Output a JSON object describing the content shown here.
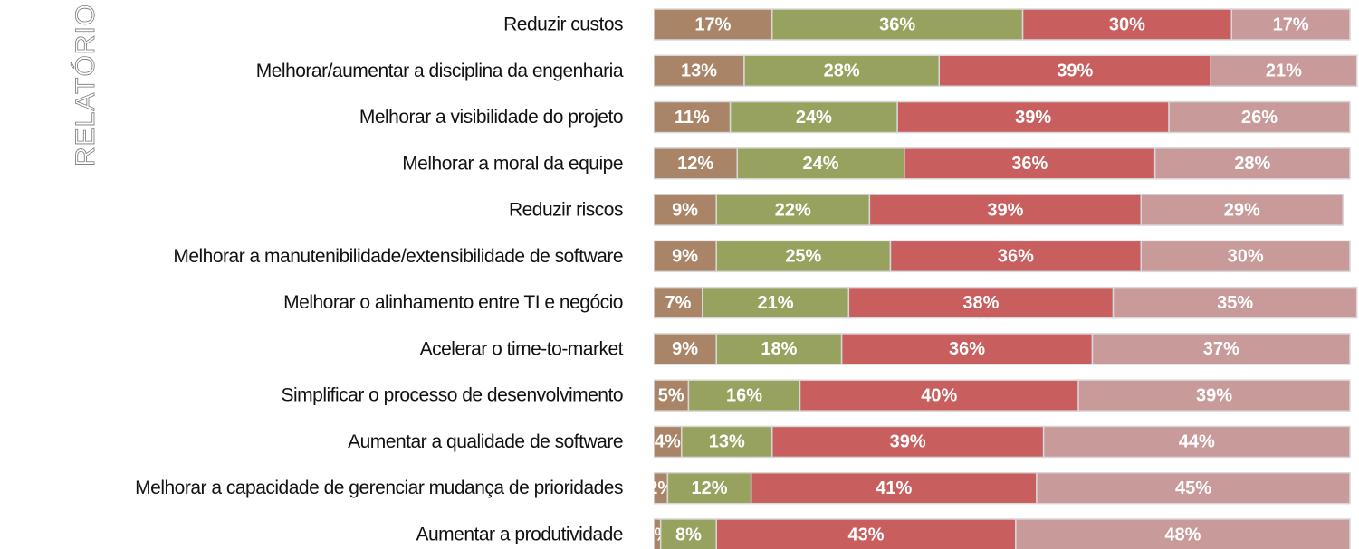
{
  "side_label": "RELATÓRIO",
  "chart_data": {
    "type": "stacked-barh",
    "categories": [
      "Reduzir custos",
      "Melhorar/aumentar a disciplina da engenharia",
      "Melhorar a visibilidade do projeto",
      "Melhorar a moral da equipe",
      "Reduzir riscos",
      "Melhorar a manutenibilidade/extensibilidade de software",
      "Melhorar o alinhamento entre TI e negócio",
      "Acelerar o time-to-market",
      "Simplificar o processo de desenvolvimento",
      "Aumentar a qualidade de software",
      "Melhorar a capacidade de gerenciar mudança de prioridades",
      "Aumentar a produtividade"
    ],
    "series": [
      {
        "color": "#a98466",
        "values": [
          17,
          13,
          11,
          12,
          9,
          9,
          7,
          9,
          5,
          4,
          2,
          1
        ],
        "value_labels": [
          "17%",
          "13%",
          "11%",
          "12%",
          "9%",
          "9%",
          "7%",
          "9%",
          "5%",
          "4%",
          "2%",
          "1%"
        ]
      },
      {
        "color": "#96a25e",
        "values": [
          36,
          28,
          24,
          24,
          22,
          25,
          21,
          18,
          16,
          13,
          12,
          8
        ],
        "value_labels": [
          "36%",
          "28%",
          "24%",
          "24%",
          "22%",
          "25%",
          "21%",
          "18%",
          "16%",
          "13%",
          "12%",
          "8%"
        ]
      },
      {
        "color": "#c85e5e",
        "values": [
          30,
          39,
          39,
          36,
          39,
          36,
          38,
          36,
          40,
          39,
          41,
          43
        ],
        "value_labels": [
          "30%",
          "39%",
          "39%",
          "36%",
          "39%",
          "36%",
          "38%",
          "36%",
          "40%",
          "39%",
          "41%",
          "43%"
        ]
      },
      {
        "color": "#c89a9a",
        "values": [
          17,
          21,
          26,
          28,
          29,
          30,
          35,
          37,
          39,
          44,
          45,
          48
        ],
        "value_labels": [
          "17%",
          "21%",
          "26%",
          "28%",
          "29%",
          "30%",
          "35%",
          "37%",
          "39%",
          "44%",
          "45%",
          "48%"
        ]
      }
    ]
  }
}
